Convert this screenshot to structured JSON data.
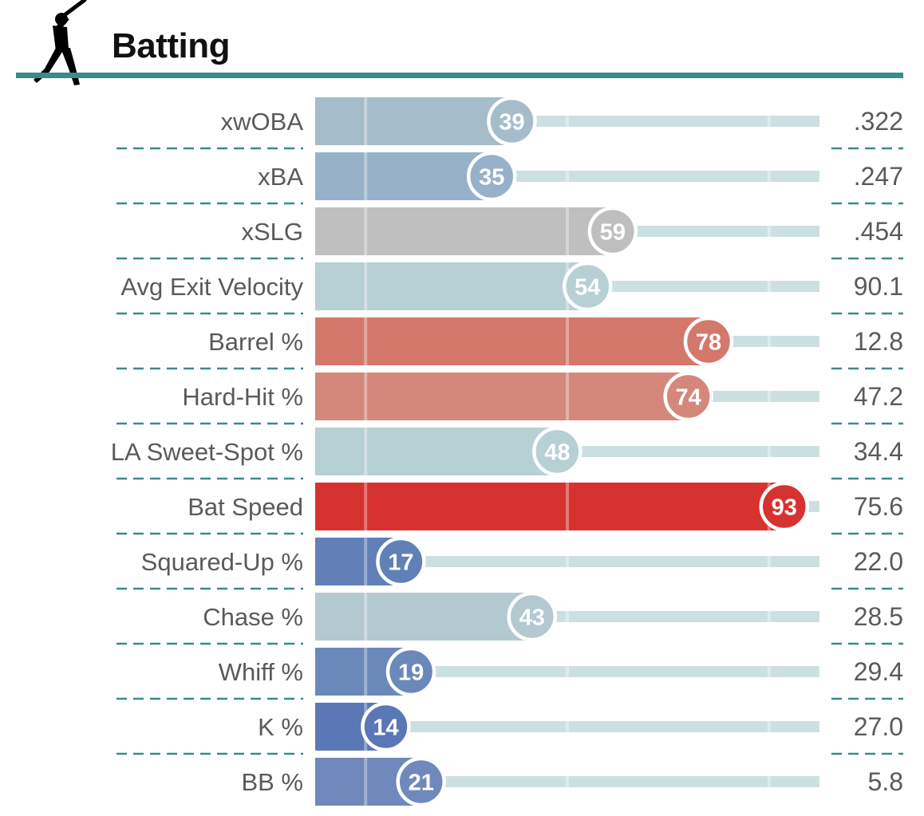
{
  "header": {
    "title": "Batting",
    "icon": "batter-silhouette-icon"
  },
  "chart_data": {
    "type": "bar",
    "orientation": "horizontal",
    "title": "Batting",
    "xlim": [
      0,
      100
    ],
    "grid": true,
    "categories": [
      "xwOBA",
      "xBA",
      "xSLG",
      "Avg Exit Velocity",
      "Barrel %",
      "Hard-Hit %",
      "LA Sweet-Spot %",
      "Bat Speed",
      "Squared-Up %",
      "Chase %",
      "Whiff %",
      "K %",
      "BB %"
    ],
    "percentiles": [
      39,
      35,
      59,
      54,
      78,
      74,
      48,
      93,
      17,
      43,
      19,
      14,
      21
    ],
    "values": [
      ".322",
      ".247",
      ".454",
      "90.1",
      "12.8",
      "47.2",
      "34.4",
      "75.6",
      "22.0",
      "28.5",
      "29.4",
      "27.0",
      "5.8"
    ],
    "colors": [
      "#a5bccb",
      "#96b1c9",
      "#bfbfbf",
      "#b7d0d4",
      "#d4786c",
      "#d4887c",
      "#b7d0d4",
      "#d63230",
      "#6180b7",
      "#b2cacf",
      "#6b88bb",
      "#5a78b5",
      "#7089bc"
    ]
  }
}
